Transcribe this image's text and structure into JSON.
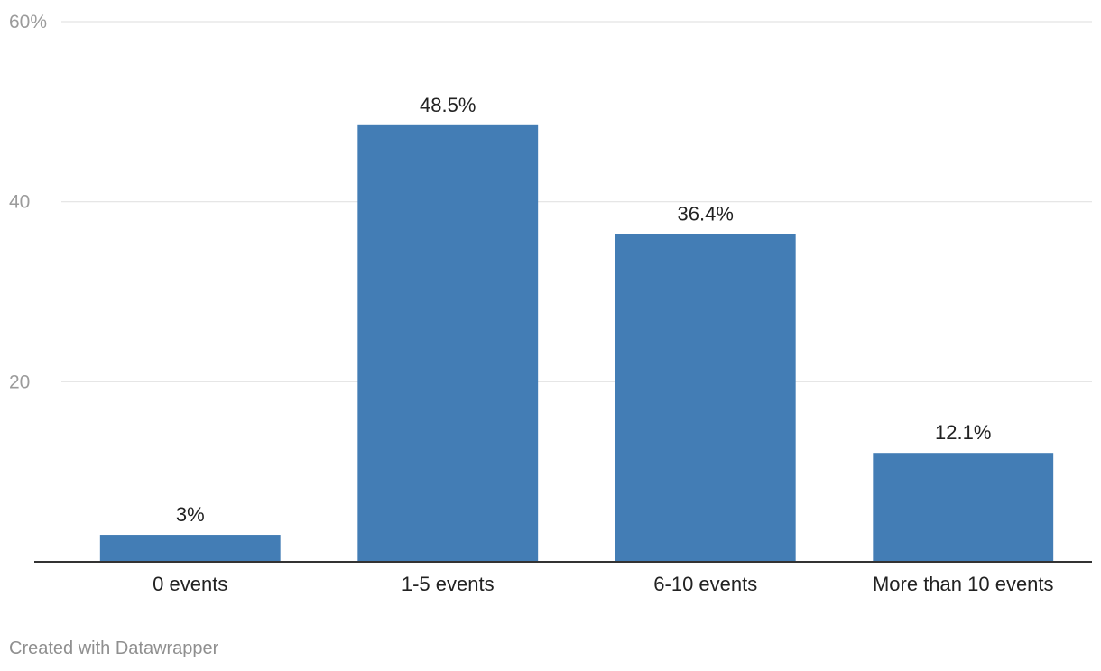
{
  "chart_data": {
    "type": "bar",
    "categories": [
      "0 events",
      "1-5 events",
      "6-10 events",
      "More than 10 events"
    ],
    "values": [
      3,
      48.5,
      36.4,
      12.1
    ],
    "value_labels": [
      "3%",
      "48.5%",
      "36.4%",
      "12.1%"
    ],
    "ylim": [
      0,
      60
    ],
    "yticks": [
      20,
      40,
      60
    ],
    "ytick_labels": [
      "20",
      "40",
      "60%"
    ],
    "grid": true,
    "bar_color": "#437db5"
  },
  "footer": {
    "credit": "Created with Datawrapper"
  }
}
